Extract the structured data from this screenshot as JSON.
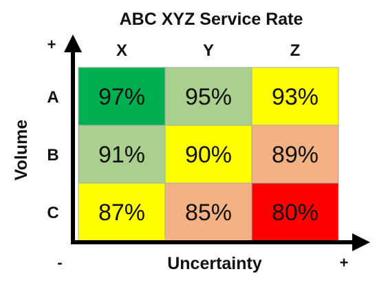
{
  "chart_data": {
    "type": "heatmap",
    "title": "ABC XYZ Service Rate",
    "xlabel": "Uncertainty",
    "ylabel": "Volume",
    "columns": [
      "X",
      "Y",
      "Z"
    ],
    "rows": [
      "A",
      "B",
      "C"
    ],
    "values": [
      [
        "97%",
        "95%",
        "93%"
      ],
      [
        "91%",
        "90%",
        "89%"
      ],
      [
        "87%",
        "85%",
        "80%"
      ]
    ],
    "cell_colors": [
      [
        "#00b050",
        "#a9d08e",
        "#ffff00"
      ],
      [
        "#a9d08e",
        "#ffff00",
        "#f4b183"
      ],
      [
        "#ffff00",
        "#f4b183",
        "#ff0000"
      ]
    ],
    "x_axis_low": "-",
    "x_axis_high": "+",
    "y_axis_high": "+",
    "grid": true
  }
}
